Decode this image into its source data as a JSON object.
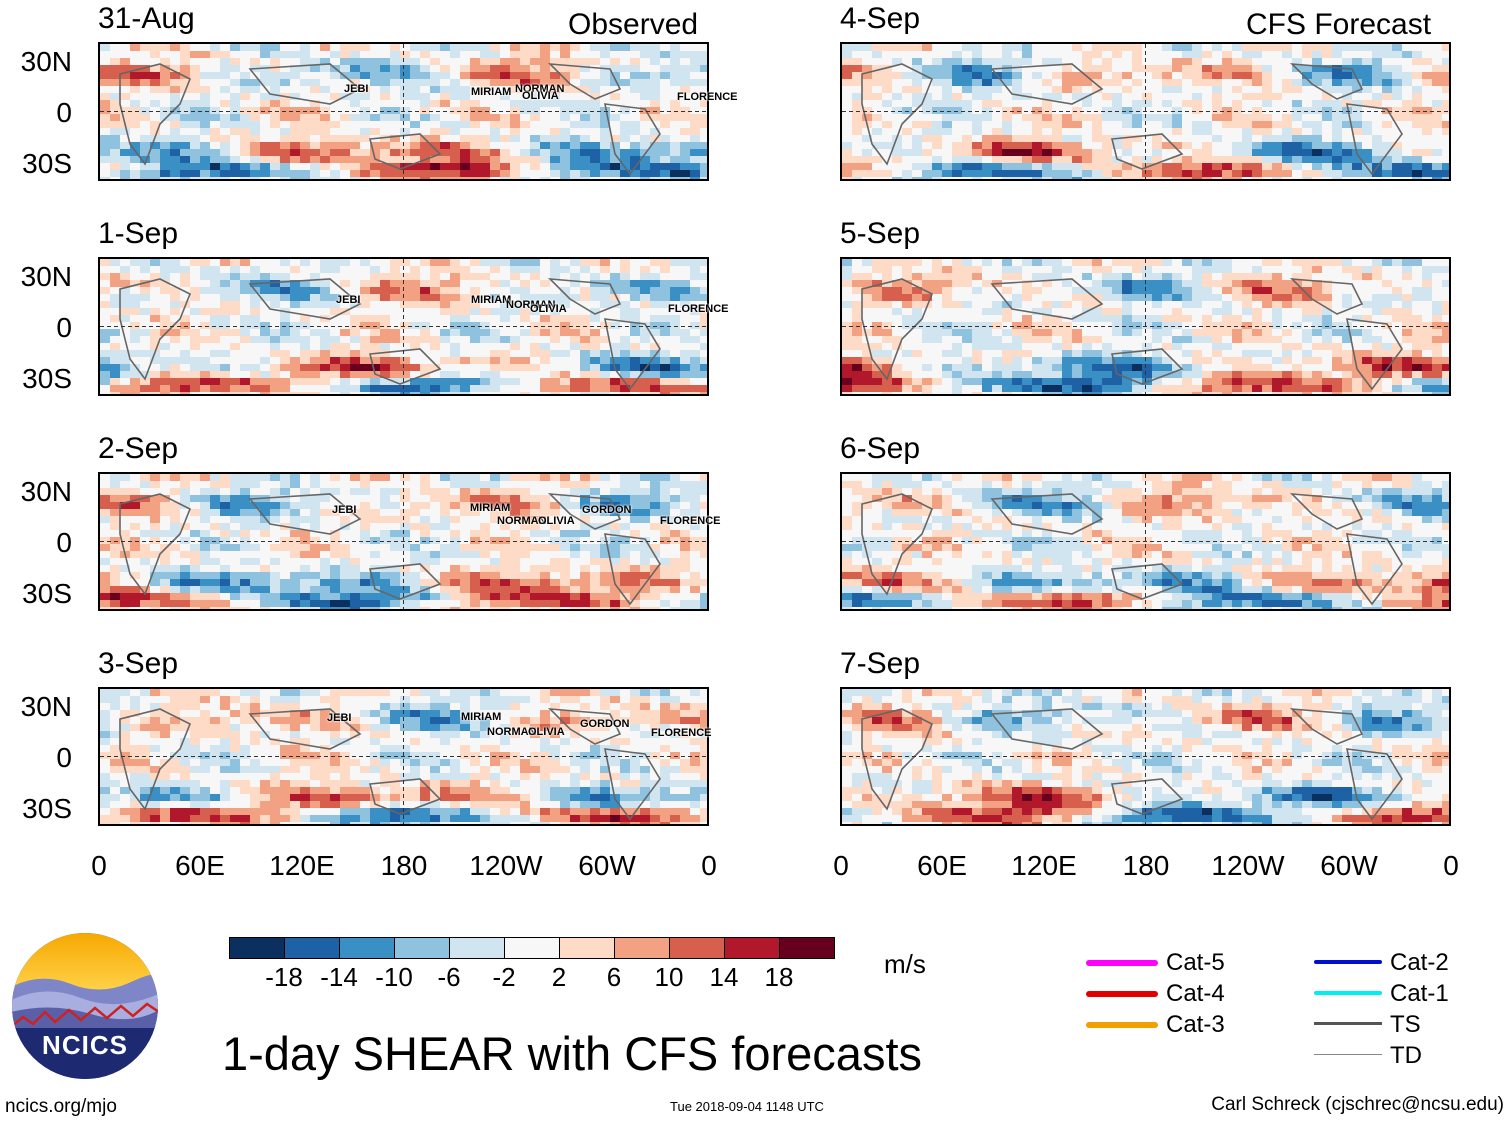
{
  "headers": {
    "observed": "Observed",
    "forecast": "CFS Forecast"
  },
  "lat_labels": [
    "30N",
    "0",
    "30S"
  ],
  "lon_labels": [
    "0",
    "60E",
    "120E",
    "180",
    "120W",
    "60W",
    "0"
  ],
  "observed_panels": [
    {
      "date": "31-Aug",
      "storms": [
        "JEBI",
        "MIRIAM",
        "NORMAN",
        "OLIVIA",
        "FLORENCE"
      ]
    },
    {
      "date": "1-Sep",
      "storms": [
        "JEBI",
        "MIRIAM",
        "NORMAN",
        "OLIVIA",
        "FLORENCE"
      ]
    },
    {
      "date": "2-Sep",
      "storms": [
        "JEBI",
        "MIRIAM",
        "NORMAN",
        "OLIVIA",
        "GORDON",
        "FLORENCE"
      ]
    },
    {
      "date": "3-Sep",
      "storms": [
        "JEBI",
        "MIRIAM",
        "NORMAN",
        "OLIVIA",
        "GORDON",
        "FLORENCE"
      ]
    }
  ],
  "forecast_panels": [
    {
      "date": "4-Sep"
    },
    {
      "date": "5-Sep"
    },
    {
      "date": "6-Sep"
    },
    {
      "date": "7-Sep"
    }
  ],
  "colorbar": {
    "ticks": [
      "-18",
      "-14",
      "-10",
      "-6",
      "-2",
      "2",
      "6",
      "10",
      "14",
      "18"
    ],
    "colors": [
      "#0b2f5e",
      "#1e61a5",
      "#3a8fc4",
      "#8fc2de",
      "#d1e5f0",
      "#f7f7f7",
      "#fddbc7",
      "#f2a283",
      "#d6604d",
      "#b2182b",
      "#67001f"
    ],
    "units": "m/s"
  },
  "legend": [
    {
      "label": "Cat-5",
      "color": "#ff00ff"
    },
    {
      "label": "Cat-4",
      "color": "#e00000"
    },
    {
      "label": "Cat-3",
      "color": "#f0a000"
    },
    {
      "label": "Cat-2",
      "color": "#0010d0"
    },
    {
      "label": "Cat-1",
      "color": "#00f0f0"
    },
    {
      "label": "TS",
      "color": "#555555"
    },
    {
      "label": "TD",
      "color": "#888888"
    }
  ],
  "title": "1-day SHEAR with CFS forecasts",
  "logo_text": "NCICS",
  "footer": {
    "website": "ncics.org/mjo",
    "timestamp": "Tue 2018-09-04 1148 UTC",
    "author": "Carl Schreck (cjschrec@ncsu.edu)"
  }
}
